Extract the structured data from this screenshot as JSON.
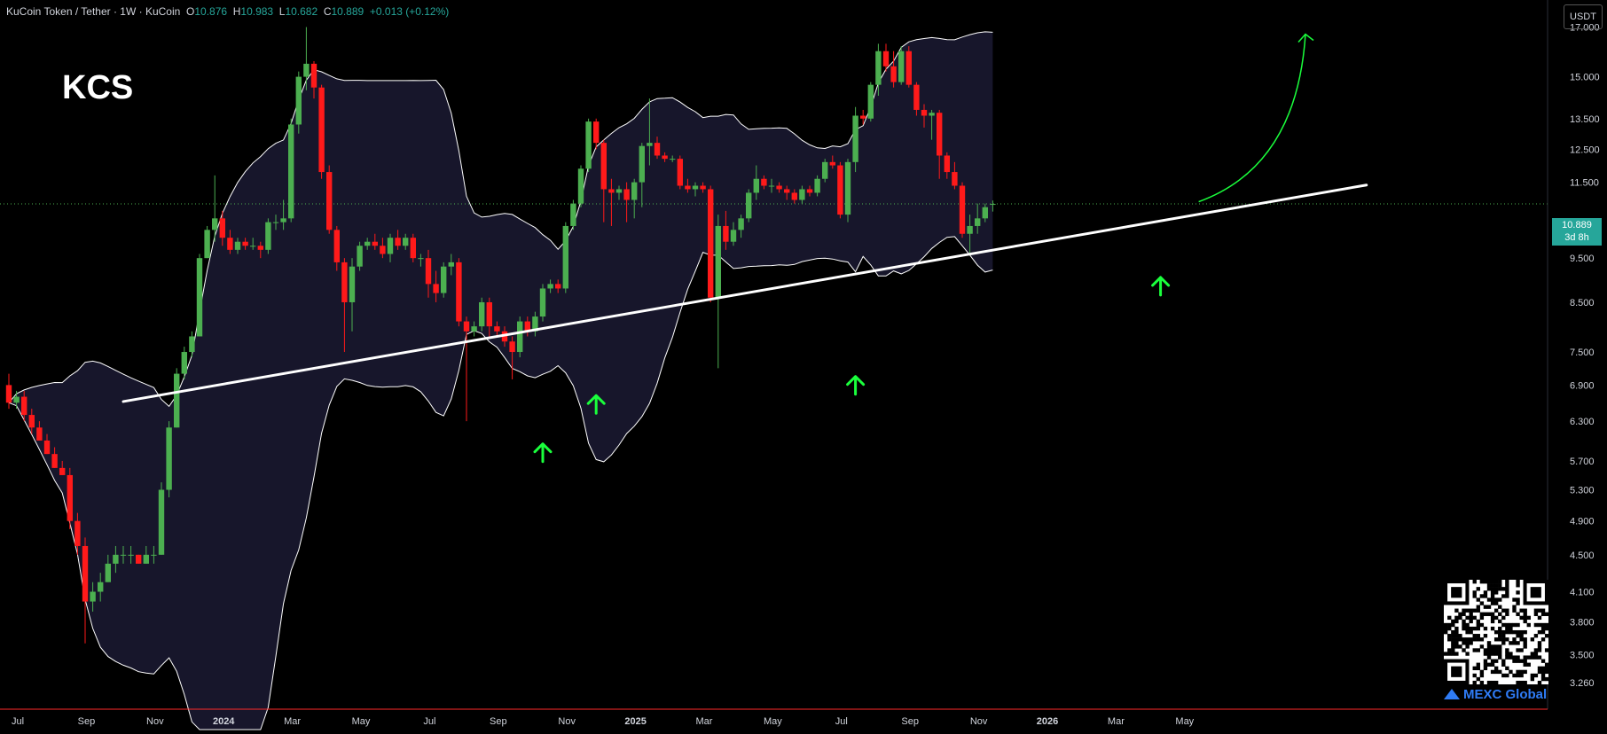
{
  "header": {
    "symbol": "KuCoin Token / Tether · 1W · KuCoin",
    "o_label": "O",
    "o_value": "10.876",
    "h_label": "H",
    "h_value": "10.983",
    "l_label": "L",
    "l_value": "10.682",
    "c_label": "C",
    "c_value": "10.889",
    "change": "+0.013 (+0.12%)"
  },
  "title_overlay": "KCS",
  "price_scale_unit": "USDT",
  "last_price": {
    "price": "10.889",
    "countdown": "3d 8h"
  },
  "brand": "MEXC Global",
  "colors": {
    "background": "#000000",
    "up": "#4caf50",
    "down": "#ff1a1a",
    "band_fill": "#1a1830",
    "band_line": "#ffffff",
    "trendline": "#ffffff",
    "arrows": "#1aff3c",
    "axis_text": "#d1d4dc",
    "brand": "#2f7cf6"
  },
  "chart_data": {
    "type": "candlestick",
    "scale": "log",
    "ylim": [
      3.05,
      18.2
    ],
    "y_ticks": [
      "17.000",
      "15.000",
      "13.500",
      "12.500",
      "11.500",
      "9.500",
      "8.500",
      "7.500",
      "6.900",
      "6.300",
      "5.700",
      "5.300",
      "4.900",
      "4.500",
      "4.100",
      "3.800",
      "3.500",
      "3.260"
    ],
    "x_ticks": [
      "Jul",
      "Sep",
      "Nov",
      "2024",
      "Mar",
      "May",
      "Jul",
      "Sep",
      "Nov",
      "2025",
      "Mar",
      "May",
      "Jul",
      "Sep",
      "Nov",
      "2026",
      "Mar",
      "May"
    ],
    "x_tick_weeks": [
      0,
      9,
      18,
      27,
      36,
      45,
      54,
      63,
      72,
      81,
      90,
      99,
      108,
      117,
      126,
      135,
      144,
      153
    ],
    "candles": [
      [
        6.9,
        7.1,
        6.5,
        6.6
      ],
      [
        6.6,
        6.8,
        6.5,
        6.7
      ],
      [
        6.7,
        6.8,
        6.3,
        6.4
      ],
      [
        6.4,
        6.5,
        6.1,
        6.2
      ],
      [
        6.2,
        6.3,
        6.0,
        6.0
      ],
      [
        6.0,
        6.1,
        5.8,
        5.8
      ],
      [
        5.8,
        5.9,
        5.6,
        5.6
      ],
      [
        5.6,
        5.7,
        5.5,
        5.5
      ],
      [
        5.5,
        5.6,
        4.8,
        4.9
      ],
      [
        4.9,
        5.0,
        4.5,
        4.6
      ],
      [
        4.6,
        4.7,
        3.6,
        4.0
      ],
      [
        4.0,
        4.2,
        3.9,
        4.1
      ],
      [
        4.1,
        4.3,
        4.0,
        4.2
      ],
      [
        4.2,
        4.5,
        4.2,
        4.4
      ],
      [
        4.4,
        4.6,
        4.3,
        4.5
      ],
      [
        4.5,
        4.6,
        4.4,
        4.5
      ],
      [
        4.5,
        4.6,
        4.4,
        4.5
      ],
      [
        4.5,
        4.5,
        4.4,
        4.4
      ],
      [
        4.4,
        4.6,
        4.4,
        4.5
      ],
      [
        4.5,
        4.6,
        4.4,
        4.5
      ],
      [
        4.5,
        5.4,
        4.5,
        5.3
      ],
      [
        5.3,
        6.3,
        5.2,
        6.2
      ],
      [
        6.2,
        7.2,
        6.2,
        7.1
      ],
      [
        7.1,
        7.6,
        7.0,
        7.5
      ],
      [
        7.5,
        7.9,
        7.4,
        7.8
      ],
      [
        7.8,
        9.6,
        7.8,
        9.5
      ],
      [
        9.5,
        10.3,
        9.5,
        10.2
      ],
      [
        10.2,
        11.7,
        9.9,
        10.5
      ],
      [
        10.5,
        10.7,
        9.8,
        10.0
      ],
      [
        10.0,
        10.2,
        9.6,
        9.7
      ],
      [
        9.7,
        10.0,
        9.6,
        9.9
      ],
      [
        9.9,
        10.0,
        9.7,
        9.8
      ],
      [
        9.8,
        10.0,
        9.7,
        9.8
      ],
      [
        9.8,
        9.9,
        9.5,
        9.7
      ],
      [
        9.7,
        10.5,
        9.6,
        10.4
      ],
      [
        10.4,
        10.6,
        10.2,
        10.4
      ],
      [
        10.4,
        11.0,
        10.2,
        10.5
      ],
      [
        10.5,
        13.5,
        10.4,
        13.3
      ],
      [
        13.3,
        15.2,
        13.0,
        15.0
      ],
      [
        15.0,
        17.0,
        14.5,
        15.5
      ],
      [
        15.5,
        15.6,
        14.2,
        14.6
      ],
      [
        14.6,
        14.7,
        11.6,
        11.8
      ],
      [
        11.8,
        12.0,
        10.1,
        10.2
      ],
      [
        10.2,
        10.3,
        9.2,
        9.4
      ],
      [
        9.4,
        9.5,
        7.5,
        8.5
      ],
      [
        8.5,
        9.5,
        7.9,
        9.3
      ],
      [
        9.3,
        9.9,
        9.2,
        9.8
      ],
      [
        9.8,
        10.0,
        9.7,
        9.9
      ],
      [
        9.9,
        10.1,
        9.7,
        9.8
      ],
      [
        9.8,
        10.0,
        9.5,
        9.6
      ],
      [
        9.6,
        10.1,
        9.4,
        10.0
      ],
      [
        10.0,
        10.2,
        9.7,
        9.8
      ],
      [
        9.8,
        10.1,
        9.7,
        10.0
      ],
      [
        10.0,
        10.1,
        9.4,
        9.5
      ],
      [
        9.5,
        9.6,
        9.3,
        9.5
      ],
      [
        9.5,
        9.7,
        8.6,
        8.9
      ],
      [
        8.9,
        9.2,
        8.5,
        8.7
      ],
      [
        8.7,
        9.4,
        8.6,
        9.3
      ],
      [
        9.3,
        9.6,
        9.1,
        9.4
      ],
      [
        9.4,
        9.5,
        8.0,
        8.1
      ],
      [
        8.1,
        8.2,
        6.3,
        7.9
      ],
      [
        7.9,
        8.1,
        7.8,
        8.0
      ],
      [
        8.0,
        8.6,
        7.9,
        8.5
      ],
      [
        8.5,
        8.6,
        7.8,
        8.0
      ],
      [
        8.0,
        8.1,
        7.8,
        7.9
      ],
      [
        7.9,
        8.0,
        7.6,
        7.7
      ],
      [
        7.7,
        7.8,
        7.0,
        7.5
      ],
      [
        7.5,
        8.2,
        7.4,
        8.1
      ],
      [
        8.1,
        8.2,
        7.8,
        7.9
      ],
      [
        7.9,
        8.3,
        7.8,
        8.2
      ],
      [
        8.2,
        8.9,
        8.1,
        8.8
      ],
      [
        8.8,
        9.0,
        8.7,
        8.9
      ],
      [
        8.9,
        9.0,
        8.7,
        8.8
      ],
      [
        8.8,
        10.4,
        8.7,
        10.3
      ],
      [
        10.3,
        11.0,
        10.2,
        10.9
      ],
      [
        10.9,
        12.0,
        10.8,
        11.9
      ],
      [
        11.9,
        13.5,
        11.8,
        13.4
      ],
      [
        13.4,
        13.5,
        12.5,
        12.7
      ],
      [
        12.7,
        12.8,
        10.4,
        11.3
      ],
      [
        11.3,
        11.6,
        10.3,
        11.2
      ],
      [
        11.2,
        11.4,
        11.0,
        11.3
      ],
      [
        11.3,
        11.5,
        10.4,
        11.0
      ],
      [
        11.0,
        11.6,
        10.5,
        11.5
      ],
      [
        11.5,
        12.7,
        10.8,
        12.6
      ],
      [
        12.6,
        14.2,
        12.0,
        12.7
      ],
      [
        12.7,
        12.9,
        12.2,
        12.3
      ],
      [
        12.3,
        12.4,
        12.1,
        12.2
      ],
      [
        12.2,
        12.3,
        12.1,
        12.2
      ],
      [
        12.2,
        12.3,
        11.3,
        11.4
      ],
      [
        11.4,
        11.6,
        11.2,
        11.3
      ],
      [
        11.3,
        11.5,
        11.1,
        11.4
      ],
      [
        11.4,
        11.5,
        11.2,
        11.3
      ],
      [
        11.3,
        11.4,
        8.5,
        8.6
      ],
      [
        8.6,
        10.6,
        7.2,
        10.3
      ],
      [
        10.3,
        10.7,
        9.7,
        9.9
      ],
      [
        9.9,
        10.4,
        9.8,
        10.2
      ],
      [
        10.2,
        10.6,
        10.0,
        10.5
      ],
      [
        10.5,
        11.3,
        10.4,
        11.2
      ],
      [
        11.2,
        12.0,
        11.0,
        11.6
      ],
      [
        11.6,
        11.7,
        11.3,
        11.4
      ],
      [
        11.4,
        11.6,
        11.2,
        11.4
      ],
      [
        11.4,
        11.5,
        11.2,
        11.3
      ],
      [
        11.3,
        11.4,
        11.0,
        11.2
      ],
      [
        11.2,
        11.3,
        10.9,
        11.0
      ],
      [
        11.0,
        11.4,
        10.9,
        11.3
      ],
      [
        11.3,
        11.4,
        11.1,
        11.2
      ],
      [
        11.2,
        11.7,
        11.1,
        11.6
      ],
      [
        11.6,
        12.2,
        11.5,
        12.1
      ],
      [
        12.1,
        12.3,
        11.9,
        12.0
      ],
      [
        12.0,
        12.1,
        10.5,
        10.6
      ],
      [
        10.6,
        12.2,
        10.4,
        12.1
      ],
      [
        12.1,
        13.9,
        11.8,
        13.6
      ],
      [
        13.6,
        13.8,
        13.3,
        13.5
      ],
      [
        13.5,
        14.8,
        13.4,
        14.7
      ],
      [
        14.7,
        16.3,
        14.3,
        16.0
      ],
      [
        16.0,
        16.3,
        15.2,
        15.4
      ],
      [
        15.4,
        16.0,
        14.6,
        14.8
      ],
      [
        14.8,
        16.2,
        14.7,
        16.0
      ],
      [
        16.0,
        16.2,
        14.6,
        14.7
      ],
      [
        14.7,
        14.8,
        13.6,
        13.8
      ],
      [
        13.8,
        14.0,
        13.2,
        13.6
      ],
      [
        13.6,
        13.8,
        12.8,
        13.7
      ],
      [
        13.7,
        13.8,
        11.6,
        12.3
      ],
      [
        12.3,
        12.4,
        11.6,
        11.8
      ],
      [
        11.8,
        12.1,
        11.3,
        11.4
      ],
      [
        11.4,
        11.5,
        10.0,
        10.1
      ],
      [
        10.1,
        10.6,
        9.6,
        10.3
      ],
      [
        10.3,
        10.9,
        10.1,
        10.5
      ],
      [
        10.5,
        10.9,
        10.4,
        10.8
      ],
      [
        10.876,
        10.983,
        10.682,
        10.889
      ]
    ]
  },
  "annotations": {
    "trendline_from": [
      15,
      6.62
    ],
    "trendline_to": [
      178,
      11.42
    ],
    "support_arrows": [
      [
        70,
        5.95
      ],
      [
        77,
        6.72
      ],
      [
        111,
        7.05
      ],
      [
        151,
        9.05
      ]
    ],
    "projection_curve_from": [
      156,
      10.95
    ],
    "projection_curve_to": [
      170,
      16.7
    ]
  }
}
